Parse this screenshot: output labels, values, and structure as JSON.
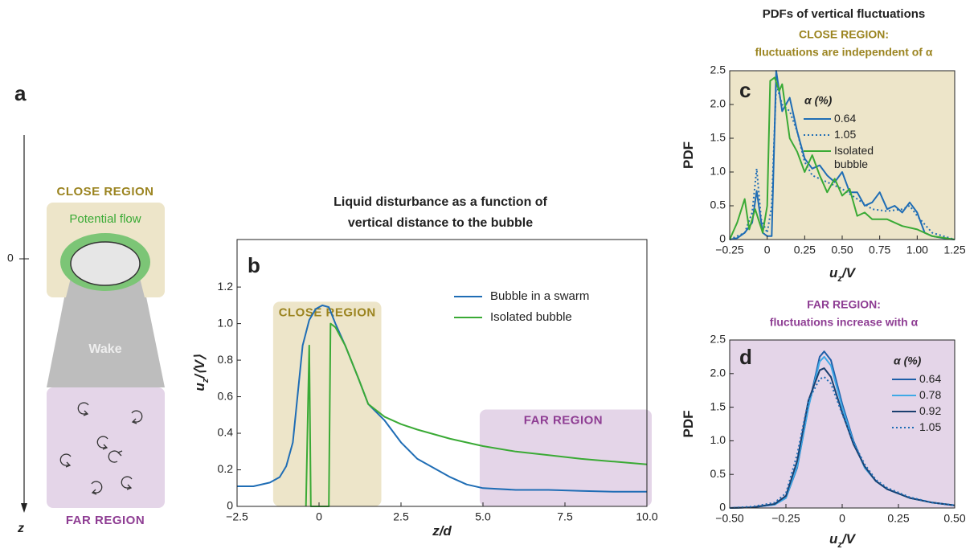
{
  "diagram": {
    "panel": "a",
    "zero": "0",
    "z": "z",
    "close_region": "CLOSE REGION",
    "potential_flow": "Potential flow",
    "wake": "Wake",
    "far_region": "FAR REGION"
  },
  "pdf_title": "PDFs of vertical fluctuations",
  "chart_data": [
    {
      "type": "line",
      "panel": "b",
      "title": [
        "Liquid disturbance as a function of",
        "vertical distance to the bubble"
      ],
      "title_color": "#222222",
      "xlabel": [
        "z/d"
      ],
      "ylabel": [
        "u",
        "z",
        "/⟨V⟩"
      ],
      "xlim": [
        -2.5,
        10
      ],
      "ylim": [
        0,
        1.46
      ],
      "xticks": [
        {
          "value": -2.5,
          "label": "−2.5"
        },
        0,
        2.5,
        {
          "value": 5,
          "label": "5.0"
        },
        7.5,
        {
          "value": 10,
          "label": "10.0"
        }
      ],
      "yticks": [
        0,
        0.2,
        0.4,
        0.6,
        0.8,
        {
          "value": 1,
          "label": "1.0"
        },
        1.2
      ],
      "background": "#ffffff",
      "regions": [
        {
          "label": "CLOSE REGION",
          "color": "#ede5c9",
          "label_color": "#9b8420",
          "x": [
            -1.4,
            1.9
          ],
          "y": [
            0,
            1.12
          ]
        },
        {
          "label": "FAR REGION",
          "color": "#e4d5e8",
          "label_color": "#8e3d93",
          "x": [
            4.9,
            10
          ],
          "y": [
            0,
            0.53
          ]
        }
      ],
      "series": [
        {
          "name": "Bubble in a swarm",
          "color": "#1f6db5",
          "dash": false,
          "x": [
            -2.5,
            -2,
            -1.5,
            -1.2,
            -1,
            -0.8,
            -0.5,
            -0.3,
            -0.1,
            0.1,
            0.3,
            0.5,
            0.8,
            1.2,
            1.5,
            2,
            2.5,
            3,
            3.5,
            4,
            4.5,
            5,
            6,
            7,
            8,
            9,
            10
          ],
          "values": [
            0.11,
            0.11,
            0.13,
            0.16,
            0.22,
            0.35,
            0.88,
            1.02,
            1.08,
            1.1,
            1.09,
            1.0,
            0.88,
            0.7,
            0.56,
            0.47,
            0.35,
            0.26,
            0.21,
            0.16,
            0.12,
            0.1,
            0.09,
            0.09,
            0.085,
            0.08,
            0.08
          ]
        },
        {
          "name": "Isolated bubble",
          "color": "#3aaa35",
          "dash": false,
          "x": [
            -0.4,
            -0.3,
            -0.25,
            0.3,
            0.35,
            0.5,
            0.8,
            1.2,
            1.5,
            2,
            2.5,
            3,
            4,
            5,
            6,
            7,
            8,
            9,
            10
          ],
          "values": [
            0,
            0.88,
            0,
            0,
            1.0,
            0.98,
            0.88,
            0.7,
            0.56,
            0.49,
            0.45,
            0.42,
            0.37,
            0.33,
            0.3,
            0.28,
            0.26,
            0.245,
            0.23
          ]
        }
      ]
    },
    {
      "type": "line",
      "panel": "c",
      "title": [
        "CLOSE REGION:",
        "fluctuations are independent of α"
      ],
      "title_color": "#9b8420",
      "xlabel": [
        "u",
        "z",
        "/V"
      ],
      "ylabel": [
        "PDF"
      ],
      "legend_title": "α (%)",
      "xlim": [
        -0.25,
        1.25
      ],
      "ylim": [
        0,
        2.5
      ],
      "xticks": [
        {
          "value": -0.25,
          "label": "−0.25"
        },
        0,
        0.25,
        {
          "value": 0.5,
          "label": "0.50"
        },
        0.75,
        {
          "value": 1,
          "label": "1.00"
        },
        1.25
      ],
      "yticks": [
        0,
        0.5,
        {
          "value": 1,
          "label": "1.0"
        },
        1.5,
        {
          "value": 2,
          "label": "2.0"
        },
        2.5
      ],
      "background": "#ede5c9",
      "series": [
        {
          "name": "0.64",
          "color": "#1f6db5",
          "dash": false,
          "x": [
            -0.25,
            -0.2,
            -0.15,
            -0.1,
            -0.07,
            -0.03,
            0,
            0.03,
            0.06,
            0.1,
            0.15,
            0.2,
            0.25,
            0.3,
            0.35,
            0.4,
            0.45,
            0.5,
            0.55,
            0.6,
            0.65,
            0.7,
            0.75,
            0.8,
            0.85,
            0.9,
            0.95,
            1.0,
            1.05,
            1.1,
            1.2,
            1.25
          ],
          "values": [
            0,
            0.02,
            0.1,
            0.25,
            0.72,
            0.1,
            0.05,
            0.05,
            2.5,
            1.9,
            2.1,
            1.6,
            1.2,
            1.05,
            1.1,
            0.95,
            0.85,
            1.0,
            0.7,
            0.7,
            0.5,
            0.55,
            0.7,
            0.45,
            0.5,
            0.4,
            0.55,
            0.4,
            0.1,
            0.05,
            0.01,
            0
          ]
        },
        {
          "name": "1.05",
          "color": "#1f6db5",
          "dash": true,
          "x": [
            -0.25,
            -0.15,
            -0.1,
            -0.07,
            -0.04,
            0,
            0.03,
            0.06,
            0.1,
            0.15,
            0.2,
            0.25,
            0.3,
            0.4,
            0.5,
            0.6,
            0.7,
            0.8,
            0.9,
            0.95,
            1.0,
            1.1,
            1.25
          ],
          "values": [
            0,
            0.1,
            0.4,
            1.05,
            0.3,
            0.1,
            0.5,
            2.3,
            2.0,
            1.9,
            1.6,
            1.15,
            0.95,
            0.85,
            0.75,
            0.6,
            0.45,
            0.42,
            0.45,
            0.5,
            0.35,
            0.1,
            0
          ]
        },
        {
          "name": "Isolated bubble",
          "color": "#3aaa35",
          "dash": false,
          "x": [
            -0.25,
            -0.2,
            -0.15,
            -0.12,
            -0.08,
            -0.03,
            0,
            0.02,
            0.05,
            0.08,
            0.1,
            0.15,
            0.2,
            0.25,
            0.3,
            0.35,
            0.4,
            0.45,
            0.5,
            0.55,
            0.6,
            0.65,
            0.7,
            0.8,
            0.9,
            1.0,
            1.1,
            1.25
          ],
          "values": [
            0,
            0.25,
            0.6,
            0.15,
            0.45,
            0.1,
            0.5,
            2.35,
            2.4,
            2.2,
            2.3,
            1.5,
            1.3,
            1.0,
            1.25,
            0.95,
            0.7,
            0.9,
            0.65,
            0.75,
            0.35,
            0.4,
            0.3,
            0.3,
            0.2,
            0.15,
            0.05,
            0
          ]
        }
      ]
    },
    {
      "type": "line",
      "panel": "d",
      "title": [
        "FAR REGION:",
        "fluctuations increase with α"
      ],
      "title_color": "#8e3d93",
      "xlabel": [
        "u",
        "z",
        "/V"
      ],
      "ylabel": [
        "PDF"
      ],
      "legend_title": "α (%)",
      "xlim": [
        -0.5,
        0.5
      ],
      "ylim": [
        0,
        2.5
      ],
      "xticks": [
        {
          "value": -0.5,
          "label": "−0.50"
        },
        {
          "value": -0.25,
          "label": "−0.25"
        },
        0,
        0.25,
        {
          "value": 0.5,
          "label": "0.50"
        }
      ],
      "yticks": [
        0,
        0.5,
        {
          "value": 1,
          "label": "1.0"
        },
        1.5,
        {
          "value": 2,
          "label": "2.0"
        },
        2.5
      ],
      "background": "#e4d5e8",
      "series": [
        {
          "name": "0.64",
          "color": "#1f5fa8",
          "dash": false,
          "x": [
            -0.5,
            -0.4,
            -0.3,
            -0.25,
            -0.2,
            -0.15,
            -0.1,
            -0.08,
            -0.05,
            0,
            0.05,
            0.1,
            0.15,
            0.2,
            0.3,
            0.4,
            0.5
          ],
          "values": [
            0,
            0.01,
            0.05,
            0.15,
            0.6,
            1.5,
            2.25,
            2.33,
            2.2,
            1.55,
            1.0,
            0.6,
            0.4,
            0.28,
            0.15,
            0.08,
            0.04
          ]
        },
        {
          "name": "0.78",
          "color": "#3fa9e6",
          "dash": false,
          "x": [
            -0.5,
            -0.4,
            -0.3,
            -0.25,
            -0.2,
            -0.15,
            -0.1,
            -0.08,
            -0.05,
            0,
            0.05,
            0.1,
            0.15,
            0.2,
            0.3,
            0.4,
            0.5
          ],
          "values": [
            0,
            0.01,
            0.05,
            0.15,
            0.62,
            1.5,
            2.18,
            2.25,
            2.12,
            1.5,
            0.98,
            0.6,
            0.4,
            0.28,
            0.15,
            0.08,
            0.04
          ]
        },
        {
          "name": "0.92",
          "color": "#1a3f6e",
          "dash": false,
          "x": [
            -0.5,
            -0.4,
            -0.3,
            -0.25,
            -0.2,
            -0.15,
            -0.1,
            -0.08,
            -0.05,
            0,
            0.05,
            0.1,
            0.15,
            0.2,
            0.3,
            0.4,
            0.5
          ],
          "values": [
            0,
            0.01,
            0.06,
            0.18,
            0.7,
            1.6,
            2.05,
            2.08,
            1.95,
            1.42,
            0.95,
            0.62,
            0.4,
            0.28,
            0.15,
            0.08,
            0.04
          ]
        },
        {
          "name": "1.05",
          "color": "#1f6db5",
          "dash": true,
          "x": [
            -0.5,
            -0.4,
            -0.3,
            -0.25,
            -0.2,
            -0.15,
            -0.1,
            -0.08,
            -0.05,
            0,
            0.05,
            0.1,
            0.15,
            0.2,
            0.3,
            0.4,
            0.5
          ],
          "values": [
            0,
            0.02,
            0.08,
            0.22,
            0.8,
            1.6,
            1.92,
            1.95,
            1.85,
            1.4,
            0.98,
            0.65,
            0.42,
            0.3,
            0.16,
            0.08,
            0.04
          ]
        }
      ]
    }
  ]
}
